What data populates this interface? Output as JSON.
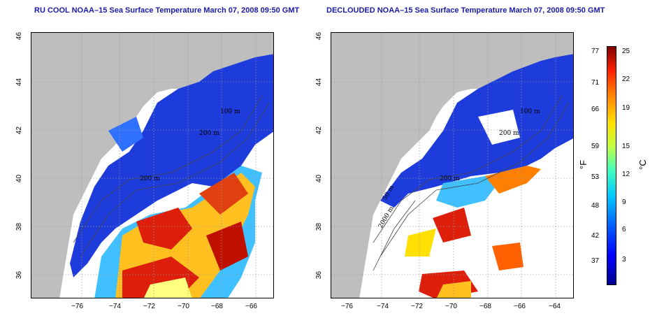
{
  "panels": [
    {
      "title": "RU COOL NOAA–15 Sea Surface Temperature March 07, 2008 09:50 GMT",
      "contours": [
        "100 m",
        "200 m",
        "200 m"
      ]
    },
    {
      "title": "DECLOUDED NOAA–15 Sea Surface Temperature March 07, 2008 09:50 GMT",
      "contours": [
        "100 m",
        "200 m",
        "200 m",
        "2000 m",
        "50 m"
      ]
    }
  ],
  "axes": {
    "x_ticks": [
      "−76",
      "−74",
      "−72",
      "−70",
      "−68",
      "−66",
      "−64"
    ],
    "y_ticks": [
      "46",
      "44",
      "42",
      "40",
      "38",
      "36"
    ]
  },
  "colorbar": {
    "fahrenheit": [
      "77",
      "71",
      "66",
      "59",
      "53",
      "48",
      "42",
      "37"
    ],
    "celsius": [
      "25",
      "22",
      "19",
      "15",
      "12",
      "9",
      "6",
      "3"
    ],
    "unit_f": "°F",
    "unit_c": "°C"
  },
  "colors": {
    "land": "#bebebe",
    "cold": "#1e3cdc",
    "warm": "#dc1e0a",
    "title": "#1a1aa6"
  }
}
